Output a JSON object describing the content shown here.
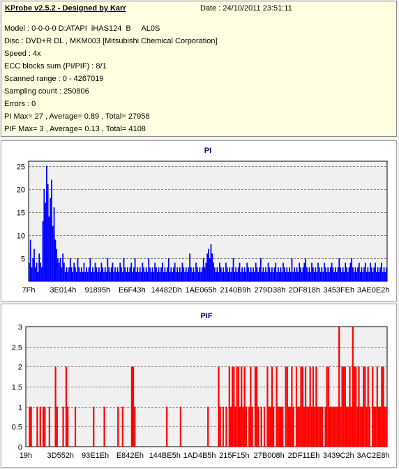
{
  "header": {
    "title": "KProbe v2.5.2 - Designed by Karr",
    "date": "Date : 24/10/2011 23:51:11"
  },
  "info_lines": [
    "Model : 0-0-0-0 D:ATAPI  iHAS124  B     AL0S",
    "Disc : DVD+R DL , MKM003 [Mitsubishi Chemical Corporation]",
    "Speed : 4x",
    "ECC blocks sum (PI/PIF) : 8/1",
    "Scanned range : 0 - 4267019",
    "Sampling count : 250806",
    "Errors : 0",
    "PI Max= 27 , Average= 0.89 , Total= 27958",
    "PIF Max= 3 , Average= 0.13 , Total= 4108"
  ],
  "colors": {
    "pi": "#0000ff",
    "pif": "#ff0000",
    "title": "#000080",
    "info_bg": "#ffffe1",
    "plot_bg": "#f0f0f0"
  },
  "chart_data": [
    {
      "type": "bar",
      "title": "PI",
      "ylim": [
        0,
        26
      ],
      "yticks": [
        5,
        10,
        15,
        20,
        25
      ],
      "xticks": [
        "7Fh",
        "3E014h",
        "91895h",
        "E6F43h",
        "14482Dh",
        "1AE065h",
        "2140B9h",
        "279D38h",
        "2DF818h",
        "3453FEh",
        "3AE0E2h"
      ],
      "grid": true,
      "series": [
        {
          "values": [
            4,
            9,
            3,
            5,
            7,
            3,
            4,
            2,
            6,
            4,
            3,
            13,
            20,
            17,
            25,
            21,
            14,
            18,
            22,
            12,
            16,
            9,
            7,
            5,
            4,
            5,
            3,
            6,
            4,
            2,
            3,
            2,
            3,
            5,
            3,
            2,
            4,
            3,
            2,
            5,
            3,
            2,
            3,
            2,
            4,
            2,
            3,
            2,
            3,
            5,
            2,
            3,
            2,
            4,
            3,
            2,
            3,
            2,
            4,
            3,
            2,
            3,
            2,
            5,
            3,
            2,
            3,
            4,
            2,
            3,
            2,
            3,
            2,
            4,
            3,
            2,
            5,
            3,
            2,
            3,
            2,
            3,
            4,
            2,
            3,
            5,
            2,
            3,
            2,
            3,
            2,
            4,
            3,
            2,
            3,
            2,
            5,
            3,
            2,
            3,
            2,
            4,
            3,
            2,
            3,
            2,
            3,
            4,
            2,
            3,
            2,
            3,
            5,
            2,
            3,
            2,
            3,
            4,
            2,
            3,
            2,
            3,
            2,
            4,
            3,
            2,
            3,
            2,
            3,
            6,
            3,
            2,
            3,
            2,
            4,
            3,
            2,
            3,
            2,
            3,
            5,
            3,
            4,
            6,
            7,
            5,
            8,
            6,
            4,
            3,
            2,
            3,
            2,
            4,
            3,
            2,
            3,
            2,
            4,
            3,
            2,
            3,
            2,
            3,
            5,
            2,
            3,
            2,
            3,
            4,
            2,
            3,
            2,
            3,
            2,
            4,
            3,
            2,
            3,
            2,
            3,
            2,
            4,
            3,
            2,
            3,
            5,
            2,
            3,
            2,
            3,
            2,
            4,
            3,
            2,
            3,
            2,
            3,
            4,
            2,
            3,
            2,
            3,
            2,
            4,
            3,
            2,
            3,
            2,
            3,
            2,
            5,
            2,
            3,
            2,
            3,
            2,
            4,
            3,
            2,
            3,
            4,
            5,
            3,
            2,
            3,
            2,
            4,
            3,
            2,
            3,
            2,
            4,
            3,
            2,
            3,
            2,
            4,
            3,
            2,
            3,
            2,
            3,
            4,
            3,
            2,
            3,
            2,
            3,
            5,
            3,
            2,
            3,
            2,
            4,
            3,
            2,
            3,
            4,
            5,
            3,
            2,
            3,
            2,
            3,
            4,
            2,
            3,
            2,
            3,
            4,
            2,
            3,
            2,
            4,
            3,
            2,
            3,
            4,
            2,
            3,
            2,
            3,
            4,
            2,
            3,
            2,
            3
          ]
        }
      ]
    },
    {
      "type": "bar",
      "title": "PIF",
      "ylim": [
        0,
        3
      ],
      "yticks": [
        0,
        0.5,
        1,
        1.5,
        2,
        2.5,
        3
      ],
      "xticks": [
        "19h",
        "3D552h",
        "93E1Eh",
        "E842Eh",
        "144BE5h",
        "1AD4B5h",
        "215F15h",
        "27B008h",
        "2DF11Eh",
        "3439C2h",
        "3AC2E8h"
      ],
      "grid": true,
      "series": [
        {
          "values": [
            0,
            0,
            1,
            1,
            0,
            0,
            0,
            1,
            0,
            1,
            0,
            1,
            1,
            0,
            0,
            1,
            0,
            0,
            0,
            2,
            1,
            0,
            0,
            0,
            1,
            0,
            2,
            1,
            0,
            0,
            0,
            0,
            1,
            0,
            0,
            0,
            0,
            0,
            0,
            0,
            0,
            0,
            0,
            0,
            1,
            0,
            0,
            0,
            0,
            0,
            0,
            1,
            0,
            0,
            0,
            0,
            0,
            0,
            0,
            0,
            1,
            0,
            0,
            1,
            0,
            0,
            0,
            0,
            0,
            2,
            2,
            1,
            0,
            0,
            0,
            0,
            0,
            0,
            0,
            0,
            0,
            0,
            0,
            0,
            0,
            0,
            0,
            0,
            0,
            0,
            0,
            0,
            1,
            0,
            0,
            0,
            0,
            0,
            0,
            0,
            0,
            1,
            0,
            0,
            0,
            0,
            0,
            0,
            0,
            0,
            0,
            0,
            0,
            0,
            0,
            0,
            0,
            0,
            0,
            1,
            0,
            0,
            0,
            0,
            0,
            0,
            2,
            1,
            0,
            1,
            0,
            1,
            0,
            2,
            1,
            2,
            2,
            1,
            2,
            2,
            1,
            2,
            1,
            2,
            1,
            0,
            1,
            2,
            1,
            0,
            2,
            2,
            1,
            0,
            1,
            0,
            1,
            0,
            2,
            1,
            1,
            2,
            1,
            0,
            2,
            1,
            1,
            1,
            1,
            0,
            2,
            2,
            1,
            1,
            2,
            1,
            0,
            2,
            1,
            1,
            2,
            2,
            1,
            2,
            1,
            1,
            2,
            1,
            2,
            1,
            2,
            1,
            1,
            1,
            1,
            0,
            1,
            2,
            2,
            1,
            1,
            1,
            1,
            1,
            1,
            3,
            1,
            2,
            2,
            2,
            1,
            1,
            2,
            1,
            3,
            2,
            2,
            1,
            2,
            1,
            1,
            2,
            2,
            1,
            2,
            1,
            0,
            2,
            1,
            1,
            2,
            1,
            1,
            2,
            2,
            1,
            1
          ]
        }
      ]
    }
  ]
}
